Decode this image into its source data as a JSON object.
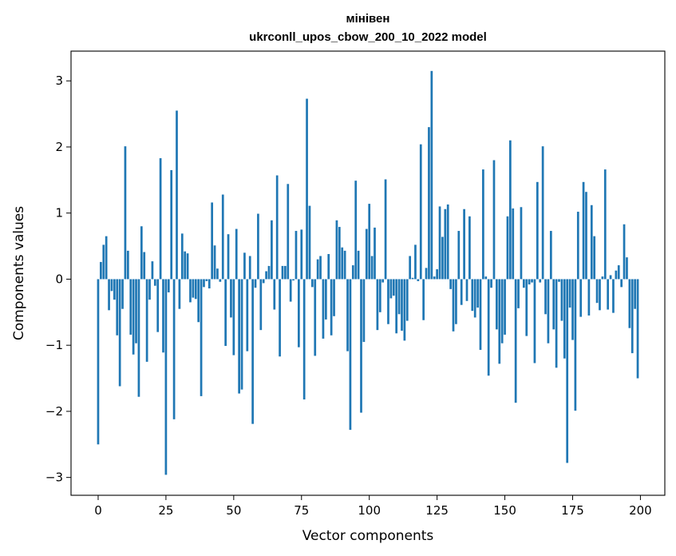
{
  "chart_data": {
    "type": "bar",
    "title": [
      "мінівен",
      "ukrconll_upos_cbow_200_10_2022 model"
    ],
    "xlabel": "Vector components",
    "ylabel": "Components values",
    "xlim": [
      -10,
      209
    ],
    "ylim": [
      -3.27,
      3.45
    ],
    "xticks": [
      0,
      25,
      50,
      75,
      100,
      125,
      150,
      175,
      200
    ],
    "xtick_labels": [
      "0",
      "25",
      "50",
      "75",
      "100",
      "125",
      "150",
      "175",
      "200"
    ],
    "yticks": [
      -3,
      -2,
      -1,
      0,
      1,
      2,
      3
    ],
    "ytick_labels": [
      "−3",
      "−2",
      "−1",
      "0",
      "1",
      "2",
      "3"
    ],
    "bar_color": "#1f77b4",
    "grid": false,
    "x": [
      0,
      1,
      2,
      3,
      4,
      5,
      6,
      7,
      8,
      9,
      10,
      11,
      12,
      13,
      14,
      15,
      16,
      17,
      18,
      19,
      20,
      21,
      22,
      23,
      24,
      25,
      26,
      27,
      28,
      29,
      30,
      31,
      32,
      33,
      34,
      35,
      36,
      37,
      38,
      39,
      40,
      41,
      42,
      43,
      44,
      45,
      46,
      47,
      48,
      49,
      50,
      51,
      52,
      53,
      54,
      55,
      56,
      57,
      58,
      59,
      60,
      61,
      62,
      63,
      64,
      65,
      66,
      67,
      68,
      69,
      70,
      71,
      72,
      73,
      74,
      75,
      76,
      77,
      78,
      79,
      80,
      81,
      82,
      83,
      84,
      85,
      86,
      87,
      88,
      89,
      90,
      91,
      92,
      93,
      94,
      95,
      96,
      97,
      98,
      99,
      100,
      101,
      102,
      103,
      104,
      105,
      106,
      107,
      108,
      109,
      110,
      111,
      112,
      113,
      114,
      115,
      116,
      117,
      118,
      119,
      120,
      121,
      122,
      123,
      124,
      125,
      126,
      127,
      128,
      129,
      130,
      131,
      132,
      133,
      134,
      135,
      136,
      137,
      138,
      139,
      140,
      141,
      142,
      143,
      144,
      145,
      146,
      147,
      148,
      149,
      150,
      151,
      152,
      153,
      154,
      155,
      156,
      157,
      158,
      159,
      160,
      161,
      162,
      163,
      164,
      165,
      166,
      167,
      168,
      169,
      170,
      171,
      172,
      173,
      174,
      175,
      176,
      177,
      178,
      179,
      180,
      181,
      182,
      183,
      184,
      185,
      186,
      187,
      188,
      189,
      190,
      191,
      192,
      193,
      194,
      195,
      196,
      197,
      198,
      199
    ],
    "values": [
      -2.5,
      0.26,
      0.52,
      0.65,
      -0.47,
      -0.18,
      -0.31,
      -0.85,
      -1.62,
      -0.45,
      2.01,
      0.43,
      -0.84,
      -1.14,
      -0.97,
      -1.78,
      0.8,
      0.41,
      -1.25,
      -0.31,
      0.27,
      -0.1,
      -0.8,
      1.83,
      -1.11,
      -2.96,
      -0.2,
      1.65,
      -2.12,
      2.55,
      -0.45,
      0.69,
      0.42,
      0.39,
      -0.35,
      -0.28,
      -0.3,
      -0.65,
      -1.77,
      -0.12,
      -0.03,
      -0.14,
      1.16,
      0.51,
      0.16,
      -0.04,
      1.28,
      -1.01,
      0.68,
      -0.58,
      -1.15,
      0.76,
      -1.73,
      -1.67,
      0.4,
      -1.09,
      0.35,
      -2.19,
      -0.13,
      0.99,
      -0.77,
      -0.06,
      0.12,
      0.2,
      0.89,
      -0.46,
      1.57,
      -1.17,
      0.2,
      0.2,
      1.44,
      -0.34,
      -0.02,
      0.73,
      -1.03,
      0.75,
      -1.82,
      2.73,
      1.11,
      -0.12,
      -1.16,
      0.3,
      0.35,
      -0.9,
      -0.61,
      0.38,
      -0.85,
      -0.56,
      0.89,
      0.79,
      0.48,
      0.43,
      -1.09,
      -2.28,
      0.21,
      1.49,
      0.43,
      -2.02,
      -0.95,
      0.76,
      1.14,
      0.35,
      0.78,
      -0.77,
      -0.5,
      -0.05,
      1.51,
      -0.68,
      -0.29,
      -0.25,
      -0.82,
      -0.53,
      -0.78,
      -0.93,
      -0.63,
      0.35,
      0.02,
      0.52,
      -0.03,
      2.04,
      -0.62,
      0.17,
      2.3,
      3.15,
      0.04,
      0.15,
      1.1,
      0.64,
      1.06,
      1.13,
      -0.15,
      -0.79,
      -0.68,
      0.73,
      -0.39,
      1.06,
      -0.33,
      0.95,
      -0.48,
      -0.58,
      -0.43,
      -1.07,
      1.66,
      0.04,
      -1.46,
      -0.13,
      1.8,
      -0.76,
      -1.28,
      -0.97,
      -0.84,
      0.95,
      2.1,
      1.07,
      -1.87,
      -0.44,
      1.09,
      -0.13,
      -0.86,
      -0.08,
      -0.05,
      -1.27,
      1.47,
      -0.05,
      2.01,
      -0.53,
      -0.97,
      0.73,
      -0.76,
      -1.34,
      -0.04,
      -0.63,
      -1.2,
      -2.78,
      -0.43,
      -0.92,
      -1.99,
      1.02,
      -0.57,
      1.47,
      1.32,
      -0.55,
      1.12,
      0.65,
      -0.36,
      -0.47,
      0.04,
      1.66,
      -0.46,
      0.06,
      -0.51,
      0.13,
      0.21,
      -0.12,
      0.83,
      0.33,
      -0.74,
      -1.12,
      -0.45,
      -1.5
    ]
  }
}
